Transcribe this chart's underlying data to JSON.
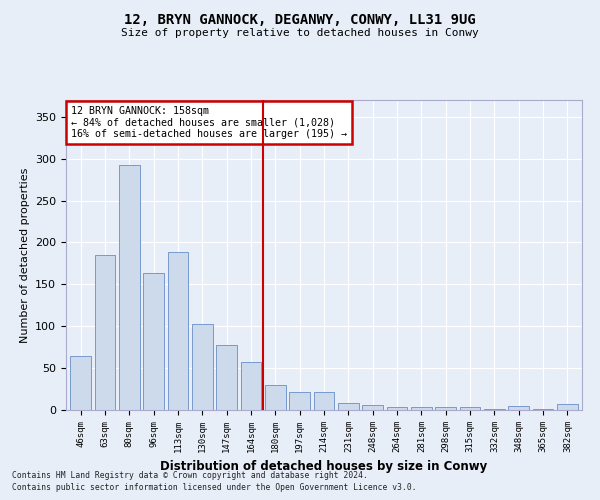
{
  "title1": "12, BRYN GANNOCK, DEGANWY, CONWY, LL31 9UG",
  "title2": "Size of property relative to detached houses in Conwy",
  "xlabel": "Distribution of detached houses by size in Conwy",
  "ylabel": "Number of detached properties",
  "categories": [
    "46sqm",
    "63sqm",
    "80sqm",
    "96sqm",
    "113sqm",
    "130sqm",
    "147sqm",
    "164sqm",
    "180sqm",
    "197sqm",
    "214sqm",
    "231sqm",
    "248sqm",
    "264sqm",
    "281sqm",
    "298sqm",
    "315sqm",
    "332sqm",
    "348sqm",
    "365sqm",
    "382sqm"
  ],
  "values": [
    65,
    185,
    293,
    163,
    188,
    103,
    78,
    57,
    30,
    22,
    22,
    8,
    6,
    4,
    4,
    3,
    4,
    1,
    5,
    1,
    7
  ],
  "bar_color": "#ccdaec",
  "bar_edge_color": "#7799cc",
  "vline_label": "12 BRYN GANNOCK: 158sqm",
  "annotation_line1": "← 84% of detached houses are smaller (1,028)",
  "annotation_line2": "16% of semi-detached houses are larger (195) →",
  "annotation_box_color": "#ffffff",
  "annotation_box_edge_color": "#cc0000",
  "vline_color": "#cc0000",
  "background_color": "#e8eef8",
  "plot_bg_color": "#e8eef8",
  "footer1": "Contains HM Land Registry data © Crown copyright and database right 2024.",
  "footer2": "Contains public sector information licensed under the Open Government Licence v3.0.",
  "ylim": [
    0,
    370
  ],
  "yticks": [
    0,
    50,
    100,
    150,
    200,
    250,
    300,
    350
  ],
  "vline_pos": 7.5
}
